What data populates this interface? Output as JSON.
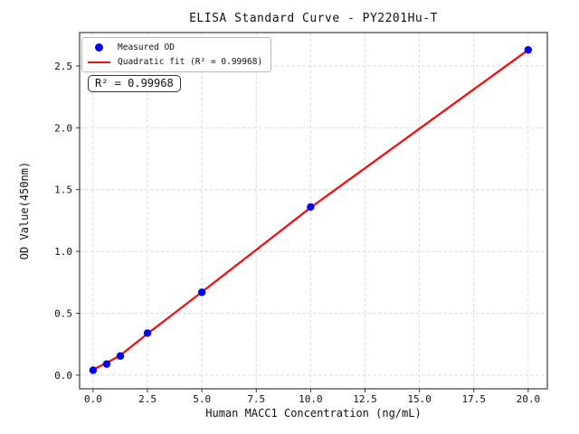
{
  "figure": {
    "background": "#ffffff"
  },
  "colors": {
    "point": "#0000ee",
    "fit_line": "#ee1111",
    "grid": "#d6d6d6",
    "spine": "#4a4a4a",
    "tick": "#333333",
    "text": "#111111"
  },
  "annotation": {
    "text": "R² = 0.99968"
  },
  "chart_data": {
    "type": "scatter",
    "title": "ELISA Standard Curve - PY2201Hu-T",
    "xlabel": "Human MACC1 Concentration (ng/mL)",
    "ylabel": "OD Value(450nm)",
    "xlim": [
      -0.62,
      20.88
    ],
    "ylim": [
      -0.11,
      2.77
    ],
    "grid": true,
    "grid_style": "dashed",
    "legend_position": "upper left",
    "x_ticks": [
      0,
      2.5,
      5,
      7.5,
      10,
      12.5,
      15,
      17.5,
      20
    ],
    "x_tick_labels": [
      "0.0",
      "2.5",
      "5.0",
      "7.5",
      "10.0",
      "12.5",
      "15.0",
      "17.5",
      "20.0"
    ],
    "y_ticks": [
      0,
      0.5,
      1,
      1.5,
      2,
      2.5
    ],
    "y_tick_labels": [
      "0.0",
      "0.5",
      "1.0",
      "1.5",
      "2.0",
      "2.5"
    ],
    "r_squared": 0.99968,
    "series": [
      {
        "name": "Measured OD",
        "type": "scatter",
        "color": "#0000ee",
        "x": [
          0,
          0.625,
          1.25,
          2.5,
          5,
          10,
          20
        ],
        "y": [
          0.04,
          0.09,
          0.155,
          0.34,
          0.67,
          1.36,
          2.63
        ]
      },
      {
        "name": "Quadratic fit (R² = 0.99968)",
        "type": "line",
        "color": "#ee1111",
        "x": [
          0,
          0.625,
          1.25,
          2.5,
          5,
          10,
          20
        ],
        "y": [
          0.045,
          0.1,
          0.16,
          0.335,
          0.672,
          1.355,
          2.63
        ]
      }
    ]
  }
}
